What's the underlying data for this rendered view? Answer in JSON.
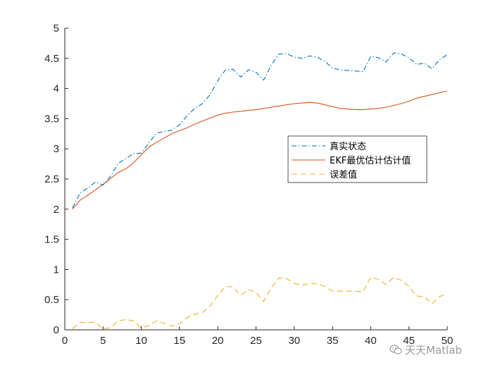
{
  "chart_data": {
    "type": "line",
    "x": [
      1,
      2,
      3,
      4,
      5,
      6,
      7,
      8,
      9,
      10,
      11,
      12,
      13,
      14,
      15,
      16,
      17,
      18,
      19,
      20,
      21,
      22,
      23,
      24,
      25,
      26,
      27,
      28,
      29,
      30,
      31,
      32,
      33,
      34,
      35,
      36,
      37,
      38,
      39,
      40,
      41,
      42,
      43,
      44,
      45,
      46,
      47,
      48,
      49,
      50
    ],
    "series": [
      {
        "name": "真实状态",
        "color": "#0072BD",
        "style": "dashdot",
        "values": [
          2.02,
          2.27,
          2.35,
          2.45,
          2.4,
          2.55,
          2.76,
          2.84,
          2.92,
          2.93,
          3.1,
          3.26,
          3.29,
          3.31,
          3.4,
          3.55,
          3.67,
          3.75,
          3.9,
          4.13,
          4.31,
          4.32,
          4.19,
          4.31,
          4.27,
          4.14,
          4.39,
          4.57,
          4.58,
          4.52,
          4.5,
          4.54,
          4.52,
          4.45,
          4.34,
          4.31,
          4.3,
          4.29,
          4.28,
          4.53,
          4.51,
          4.44,
          4.59,
          4.57,
          4.51,
          4.4,
          4.42,
          4.33,
          4.48,
          4.56
        ]
      },
      {
        "name": "EKF最优估计估计值",
        "color": "#D95319",
        "style": "solid",
        "values": [
          2.0,
          2.15,
          2.23,
          2.32,
          2.41,
          2.51,
          2.61,
          2.67,
          2.77,
          2.9,
          3.03,
          3.11,
          3.18,
          3.25,
          3.3,
          3.35,
          3.41,
          3.46,
          3.51,
          3.56,
          3.59,
          3.61,
          3.62,
          3.64,
          3.65,
          3.67,
          3.69,
          3.71,
          3.73,
          3.75,
          3.76,
          3.77,
          3.76,
          3.73,
          3.7,
          3.67,
          3.66,
          3.65,
          3.65,
          3.66,
          3.67,
          3.69,
          3.72,
          3.75,
          3.79,
          3.84,
          3.87,
          3.9,
          3.93,
          3.96
        ]
      },
      {
        "name": "误差值",
        "color": "#EDB120",
        "style": "dashed",
        "values": [
          0.02,
          0.12,
          0.12,
          0.13,
          0.01,
          0.04,
          0.15,
          0.17,
          0.15,
          0.03,
          0.07,
          0.15,
          0.11,
          0.06,
          0.1,
          0.2,
          0.26,
          0.29,
          0.39,
          0.57,
          0.72,
          0.71,
          0.57,
          0.67,
          0.62,
          0.47,
          0.7,
          0.86,
          0.85,
          0.77,
          0.74,
          0.77,
          0.76,
          0.72,
          0.64,
          0.64,
          0.64,
          0.64,
          0.63,
          0.87,
          0.84,
          0.75,
          0.87,
          0.82,
          0.72,
          0.56,
          0.55,
          0.43,
          0.55,
          0.6
        ]
      }
    ],
    "xlim": [
      0,
      50
    ],
    "ylim": [
      0,
      5
    ],
    "xticks": [
      0,
      5,
      10,
      15,
      20,
      25,
      30,
      35,
      40,
      45,
      50
    ],
    "yticks": [
      0,
      0.5,
      1,
      1.5,
      2,
      2.5,
      3,
      3.5,
      4,
      4.5,
      5
    ],
    "title": "",
    "xlabel": "",
    "ylabel": "",
    "grid": false,
    "legend_position": "center-right"
  },
  "watermark": {
    "text": "天天Matlab",
    "icon": "wechat-icon"
  }
}
